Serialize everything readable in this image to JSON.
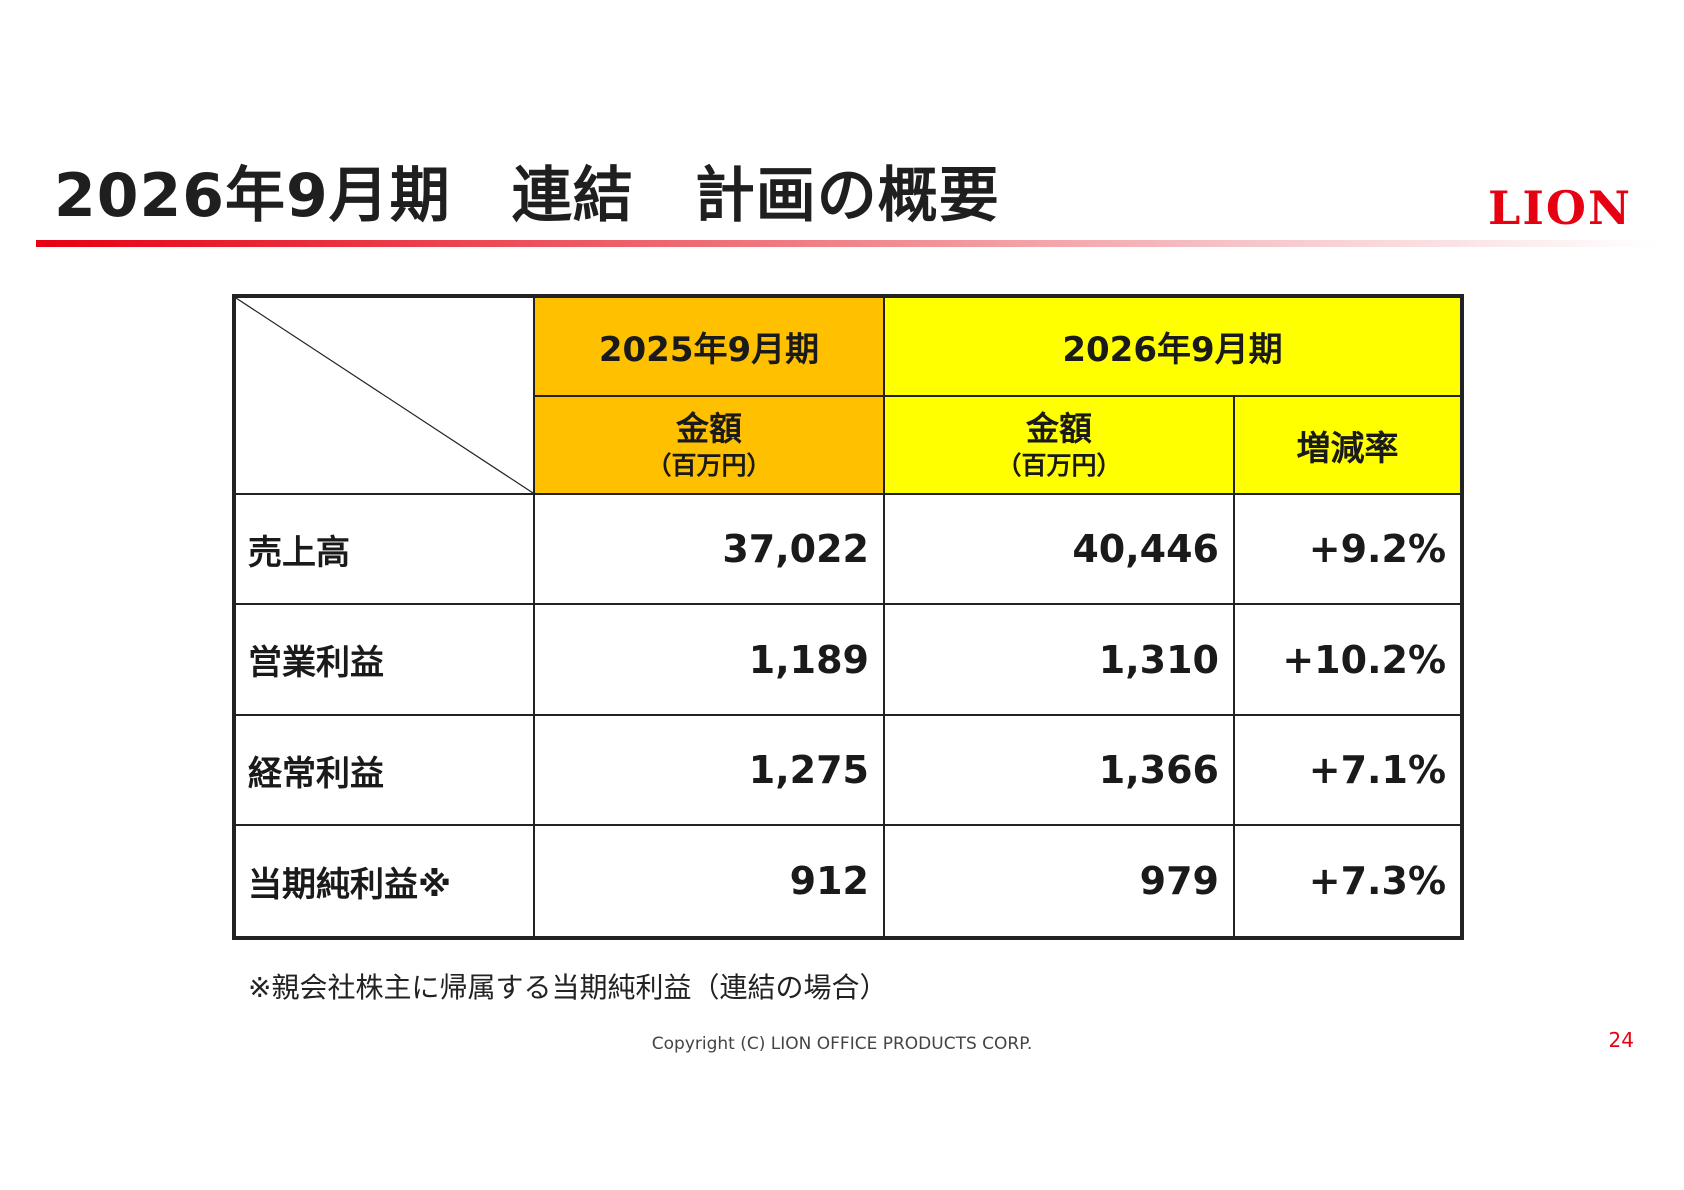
{
  "title": "2026年9月期　連結　計画の概要",
  "logo_text": "LION",
  "colors": {
    "brand_red": "#e60012",
    "fy2025_header": "#ffc000",
    "fy2026_header": "#ffff00"
  },
  "table": {
    "period_2025": "2025年9月期",
    "period_2026": "2026年9月期",
    "amount_label": "金額",
    "unit_label": "（百万円）",
    "change_label": "増減率",
    "rows": [
      {
        "label": "売上高",
        "fy2025": "37,022",
        "fy2026": "40,446",
        "change": "+9.2%"
      },
      {
        "label": "営業利益",
        "fy2025": "1,189",
        "fy2026": "1,310",
        "change": "+10.2%"
      },
      {
        "label": "経常利益",
        "fy2025": "1,275",
        "fy2026": "1,366",
        "change": "+7.1%"
      },
      {
        "label": "当期純利益※",
        "fy2025": "912",
        "fy2026": "979",
        "change": "+7.3%"
      }
    ]
  },
  "footnote": "※親会社株主に帰属する当期純利益（連結の場合）",
  "copyright": "Copyright (C) LION OFFICE PRODUCTS CORP.",
  "page_number": "24"
}
